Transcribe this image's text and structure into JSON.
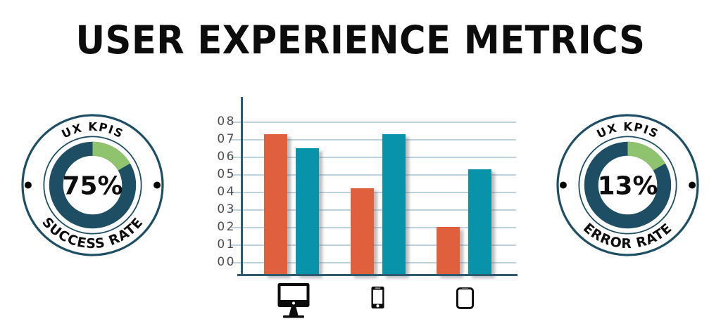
{
  "page": {
    "title": "USER EXPERIENCE METRICS",
    "background": "#ffffff"
  },
  "colors": {
    "navy": "#1d4e63",
    "green": "#8fc36e",
    "orange": "#e0603e",
    "teal": "#0993aa",
    "grid": "#bcd2de",
    "axis": "#2d5b73",
    "tick_text": "#4d4d4d",
    "title_text": "#0c0c0c",
    "dot": "#000000"
  },
  "chart_data": [
    {
      "type": "bar",
      "title": "",
      "xlabel": "",
      "ylabel": "",
      "categories": [
        "desktop",
        "smartphone",
        "tablet"
      ],
      "category_icons": [
        "desktop-icon",
        "smartphone-icon",
        "tablet-icon"
      ],
      "series": [
        {
          "name": "series-orange",
          "color": "#e0603e",
          "values": [
            7.3,
            4.2,
            2.0
          ]
        },
        {
          "name": "series-teal",
          "color": "#0993aa",
          "values": [
            6.5,
            7.3,
            5.3
          ]
        }
      ],
      "yticks": [
        "00",
        "01",
        "02",
        "03",
        "04",
        "05",
        "06",
        "07",
        "08"
      ],
      "ylim": [
        0,
        8
      ],
      "grid": true,
      "legend": "none"
    },
    {
      "type": "donut",
      "label_top": "UX KPIS",
      "value": 75,
      "value_label": "75%",
      "label_bottom": "SUCCESS RATE",
      "segments": [
        {
          "name": "accent",
          "color": "#8fc36e",
          "fraction": 0.17
        },
        {
          "name": "main",
          "color": "#1d4e63",
          "fraction": 0.83
        }
      ]
    },
    {
      "type": "donut",
      "label_top": "UX KPIS",
      "value": 13,
      "value_label": "13%",
      "label_bottom": "ERROR RATE",
      "segments": [
        {
          "name": "accent",
          "color": "#8fc36e",
          "fraction": 0.17
        },
        {
          "name": "main",
          "color": "#1d4e63",
          "fraction": 0.83
        }
      ]
    }
  ]
}
